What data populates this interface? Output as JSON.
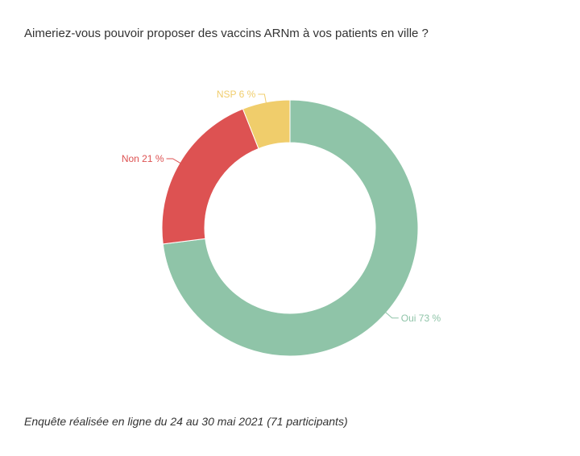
{
  "title": "Aimeriez-vous pouvoir proposer des vaccins ARNm à vos patients en ville ?",
  "footnote": "Enquête réalisée en ligne du 24 au 30 mai 2021 (71 participants)",
  "chart_data": {
    "type": "pie",
    "variant": "donut",
    "title": "Aimeriez-vous pouvoir proposer des vaccins ARNm à vos patients en ville ?",
    "slices": [
      {
        "name": "Oui",
        "value": 73,
        "label": "Oui 73 %",
        "color": "#8fc4a8"
      },
      {
        "name": "Non",
        "value": 21,
        "label": "Non 21 %",
        "color": "#dd5252"
      },
      {
        "name": "NSP",
        "value": 6,
        "label": "NSP 6 %",
        "color": "#f0cd6b"
      }
    ],
    "start": "top",
    "direction": "clockwise",
    "legend": "none"
  }
}
